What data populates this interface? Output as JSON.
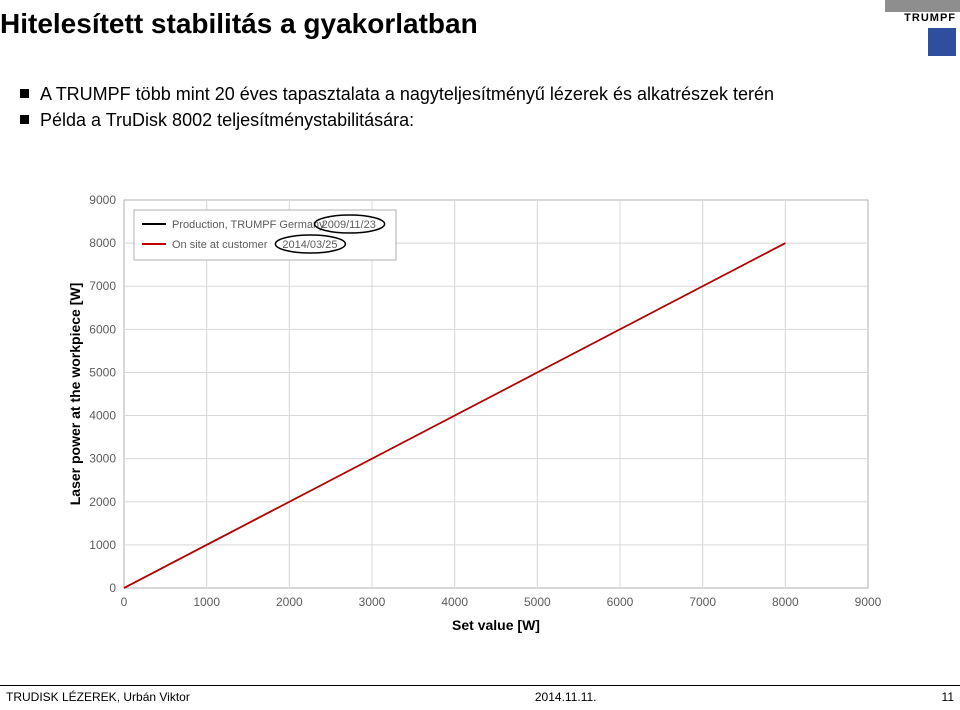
{
  "logo": {
    "brand": "TRUMPF"
  },
  "heading": "Hitelesített stabilitás a gyakorlatban",
  "bullets": [
    "A TRUMPF több mint 20 éves tapasztalata a nagyteljesítményű lézerek és alkatrészek terén",
    "Példa a TruDisk 8002 teljesítménystabilitására:"
  ],
  "chart": {
    "type": "line",
    "xlabel": "Set value [W]",
    "ylabel": "Laser power at the workpiece [W]",
    "xlim": [
      0,
      9000
    ],
    "ylim": [
      0,
      9000
    ],
    "xtick_step": 1000,
    "ytick_step": 1000,
    "xtick_labels": [
      "0",
      "1000",
      "2000",
      "3000",
      "4000",
      "5000",
      "6000",
      "7000",
      "8000",
      "9000"
    ],
    "ytick_labels": [
      "0",
      "1000",
      "2000",
      "3000",
      "4000",
      "5000",
      "6000",
      "7000",
      "8000",
      "9000"
    ],
    "background_color": "#ffffff",
    "plot_border_color": "#b0b0b0",
    "grid_color": "#d8d8d8",
    "axis_text_color": "#5c5c5c",
    "axis_title_fontsize": 14,
    "tick_fontsize": 12,
    "legend": {
      "position": "top-left-inside",
      "border_color": "#b0b0b0",
      "items": [
        {
          "label": "Production, TRUMPF Germany",
          "date": "2009/11/23",
          "color": "#000000"
        },
        {
          "label": "On site at customer",
          "date": "2014/03/25",
          "color": "#c00000"
        }
      ]
    },
    "series": [
      {
        "name": "production",
        "color": "#000000",
        "line_width": 1.6,
        "points": [
          [
            0,
            0
          ],
          [
            1000,
            1000
          ],
          [
            2000,
            2000
          ],
          [
            3000,
            3000
          ],
          [
            4000,
            4000
          ],
          [
            5000,
            5000
          ],
          [
            6000,
            6000
          ],
          [
            7000,
            7000
          ],
          [
            8000,
            8000
          ]
        ]
      },
      {
        "name": "onsite",
        "color": "#c00000",
        "line_width": 1.6,
        "points": [
          [
            0,
            0
          ],
          [
            1000,
            1000
          ],
          [
            2000,
            2000
          ],
          [
            3000,
            3000
          ],
          [
            4000,
            4000
          ],
          [
            5000,
            5000
          ],
          [
            6000,
            6000
          ],
          [
            7000,
            7000
          ],
          [
            8000,
            8000
          ]
        ]
      }
    ],
    "annotations": {
      "ellipses": [
        {
          "around": "legend-date-0"
        },
        {
          "around": "legend-date-1"
        }
      ]
    }
  },
  "footer": {
    "left": "TRUDISK LÉZEREK, Urbán Viktor",
    "date": "2014.11.11.",
    "page": "11"
  }
}
